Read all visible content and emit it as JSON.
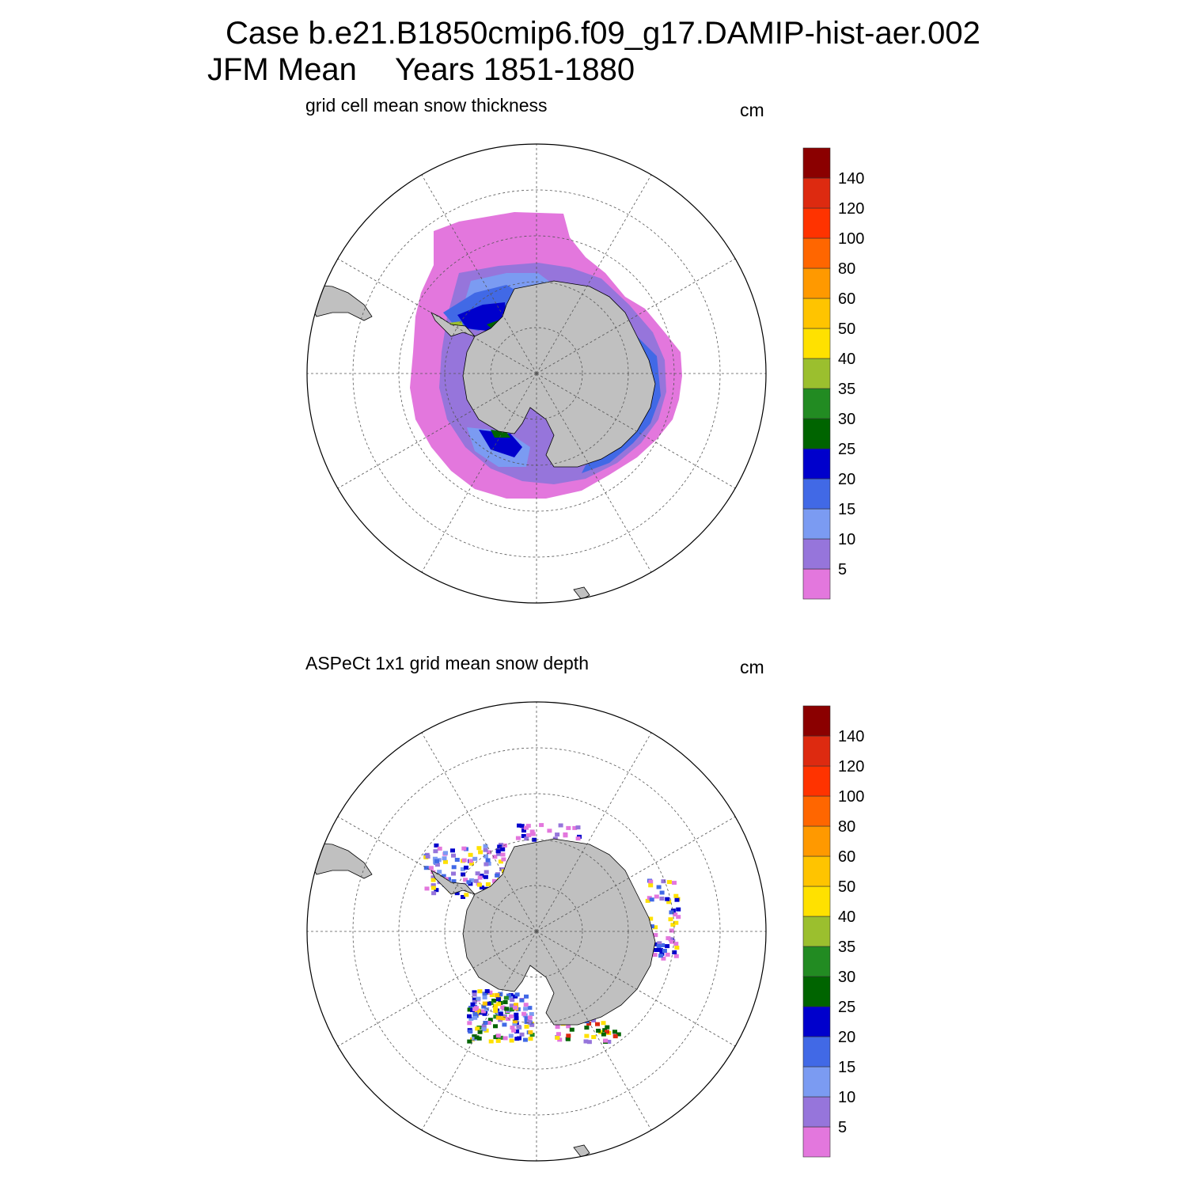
{
  "title": {
    "case_line": "Case b.e21.B1850cmip6.f09_g17.DAMIP-hist-aer.002",
    "season": "JFM Mean",
    "years": "Years 1851-1880"
  },
  "panels": [
    {
      "id": "model",
      "label": "grid cell mean snow thickness",
      "unit": "cm"
    },
    {
      "id": "obs",
      "label": "ASPeCt 1x1 grid mean snow depth",
      "unit": "cm"
    }
  ],
  "colorbar": {
    "levels": [
      "5",
      "10",
      "15",
      "20",
      "25",
      "30",
      "35",
      "40",
      "50",
      "60",
      "80",
      "100",
      "120",
      "140"
    ],
    "colors": [
      "#e377dd",
      "#9675db",
      "#7b9bf2",
      "#4169e6",
      "#0000cc",
      "#006400",
      "#228b22",
      "#9bbf2e",
      "#ffe100",
      "#ffc400",
      "#ff9900",
      "#ff6600",
      "#ff3300",
      "#dd2a10",
      "#8b0000"
    ]
  },
  "map_colors": {
    "land": "#c0c0c0",
    "coast": "#000000",
    "grid": "#555555"
  },
  "chart_data": {
    "type": "heatmap",
    "projection": "south polar stereographic",
    "variables": [
      "grid cell mean snow thickness (cm)",
      "ASPeCt 1x1 grid mean snow depth (cm)"
    ],
    "lat_circles": [
      -80,
      -70,
      -60,
      -50
    ],
    "meridians_deg": [
      0,
      30,
      60,
      90,
      120,
      150,
      180,
      210,
      240,
      270,
      300,
      330
    ],
    "contour_levels_cm": [
      5,
      10,
      15,
      20,
      25,
      30,
      35,
      40,
      50,
      60,
      80,
      100,
      120,
      140
    ]
  }
}
